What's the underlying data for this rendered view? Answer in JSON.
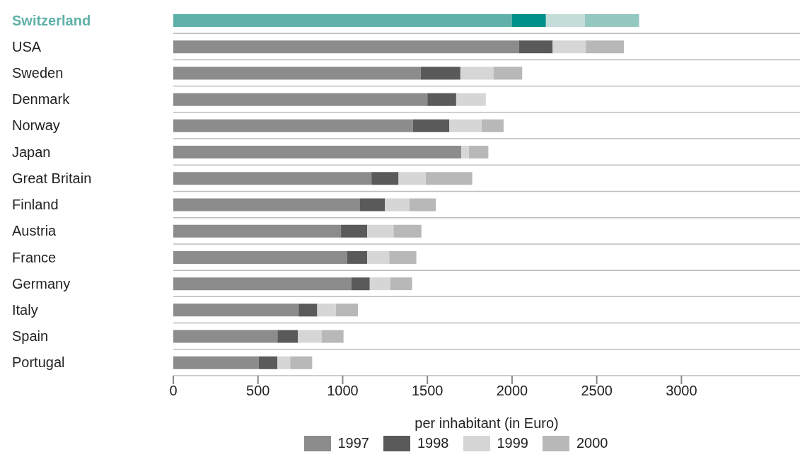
{
  "chart_data": {
    "type": "bar",
    "orientation": "horizontal",
    "stacked": true,
    "xlabel": "per inhabitant (in Euro)",
    "categories": [
      "Switzerland",
      "USA",
      "Sweden",
      "Denmark",
      "Norway",
      "Japan",
      "Great Britain",
      "Finland",
      "Austria",
      "France",
      "Germany",
      "Italy",
      "Spain",
      "Portugal"
    ],
    "series": [
      {
        "name": "1997",
        "color": "#8c8c8c",
        "colors": [
          "#5fb0a8",
          "#8c8c8c",
          "#8c8c8c",
          "#8c8c8c",
          "#8c8c8c",
          "#8c8c8c",
          "#8c8c8c",
          "#8c8c8c",
          "#8c8c8c",
          "#8c8c8c",
          "#8c8c8c",
          "#8c8c8c",
          "#8c8c8c",
          "#8c8c8c"
        ],
        "values": [
          2000,
          2040,
          1460,
          1500,
          1415,
          1700,
          1170,
          1100,
          990,
          1025,
          1050,
          740,
          615,
          505
        ]
      },
      {
        "name": "1998",
        "color": "#5a5a5a",
        "colors": [
          "#00908a",
          "#5a5a5a",
          "#5a5a5a",
          "#5a5a5a",
          "#5a5a5a",
          "#5a5a5a",
          "#5a5a5a",
          "#5a5a5a",
          "#5a5a5a",
          "#5a5a5a",
          "#5a5a5a",
          "#5a5a5a",
          "#5a5a5a",
          "#5a5a5a"
        ],
        "values": [
          200,
          200,
          235,
          170,
          215,
          null,
          160,
          150,
          155,
          120,
          110,
          110,
          120,
          110
        ]
      },
      {
        "name": "1999",
        "color": "#d6d6d6",
        "colors": [
          "#c4ddd9",
          "#d6d6d6",
          "#d6d6d6",
          "#d6d6d6",
          "#d6d6d6",
          "#d6d6d6",
          "#d6d6d6",
          "#d6d6d6",
          "#d6d6d6",
          "#d6d6d6",
          "#d6d6d6",
          "#d6d6d6",
          "#d6d6d6",
          "#d6d6d6"
        ],
        "values": [
          230,
          195,
          195,
          175,
          190,
          45,
          160,
          145,
          155,
          130,
          120,
          110,
          140,
          75
        ]
      },
      {
        "name": "2000",
        "color": "#b8b8b8",
        "colors": [
          "#94c7bf",
          "#b8b8b8",
          "#b8b8b8",
          "#b8b8b8",
          "#b8b8b8",
          "#b8b8b8",
          "#b8b8b8",
          "#b8b8b8",
          "#b8b8b8",
          "#b8b8b8",
          "#b8b8b8",
          "#b8b8b8",
          "#b8b8b8",
          "#b8b8b8"
        ],
        "values": [
          320,
          225,
          170,
          null,
          130,
          115,
          275,
          155,
          165,
          160,
          130,
          130,
          130,
          130
        ]
      }
    ],
    "xlim": [
      0,
      3700
    ],
    "xticks": [
      0,
      500,
      1000,
      1500,
      2000,
      2500,
      3000
    ],
    "grid": "y",
    "legend": "bottom"
  }
}
